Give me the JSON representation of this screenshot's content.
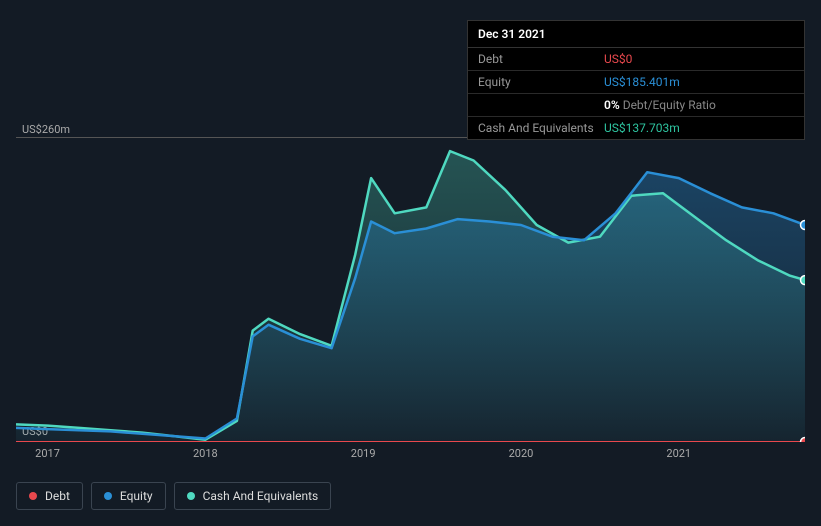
{
  "tooltip": {
    "date": "Dec 31 2021",
    "rows": [
      {
        "label": "Debt",
        "value": "US$0",
        "cls": "debt"
      },
      {
        "label": "Equity",
        "value": "US$185.401m",
        "cls": "equity"
      },
      {
        "label": "",
        "ratio_pct": "0%",
        "ratio_txt": " Debt/Equity Ratio",
        "cls": "ratio"
      },
      {
        "label": "Cash And Equivalents",
        "value": "US$137.703m",
        "cls": "cash"
      }
    ]
  },
  "chart": {
    "type": "area",
    "background_color": "#131b25",
    "grid_color": "#2a3340",
    "axis_line_color": "#555",
    "y": {
      "max_label": "US$260m",
      "min_label": "US$0",
      "ylim": [
        0,
        260
      ]
    },
    "x": {
      "ticks": [
        {
          "label": "2017",
          "pos": 0.04
        },
        {
          "label": "2018",
          "pos": 0.24
        },
        {
          "label": "2019",
          "pos": 0.44
        },
        {
          "label": "2020",
          "pos": 0.64
        },
        {
          "label": "2021",
          "pos": 0.84
        }
      ]
    },
    "series": {
      "debt": {
        "label": "Debt",
        "color": "#e8484d",
        "fill_opacity": 0.35,
        "points": [
          [
            0.0,
            0
          ],
          [
            0.04,
            0
          ],
          [
            0.08,
            0
          ],
          [
            0.12,
            0
          ],
          [
            0.16,
            0
          ],
          [
            0.2,
            0
          ],
          [
            0.24,
            0
          ],
          [
            0.28,
            0
          ],
          [
            0.32,
            0
          ],
          [
            0.36,
            0
          ],
          [
            0.4,
            0
          ],
          [
            0.44,
            0
          ],
          [
            0.48,
            0
          ],
          [
            0.52,
            0
          ],
          [
            0.56,
            0
          ],
          [
            0.6,
            0
          ],
          [
            0.64,
            0
          ],
          [
            0.68,
            0
          ],
          [
            0.72,
            0
          ],
          [
            0.76,
            0
          ],
          [
            0.8,
            0
          ],
          [
            0.84,
            0
          ],
          [
            0.88,
            0
          ],
          [
            0.92,
            0
          ],
          [
            0.96,
            0
          ],
          [
            1.0,
            0
          ]
        ]
      },
      "equity": {
        "label": "Equity",
        "color": "#2a8fd6",
        "fill_opacity": 0.35,
        "points": [
          [
            0.0,
            12
          ],
          [
            0.04,
            11
          ],
          [
            0.08,
            10
          ],
          [
            0.12,
            9
          ],
          [
            0.16,
            7
          ],
          [
            0.2,
            5
          ],
          [
            0.24,
            3
          ],
          [
            0.28,
            20
          ],
          [
            0.3,
            90
          ],
          [
            0.32,
            100
          ],
          [
            0.36,
            88
          ],
          [
            0.4,
            80
          ],
          [
            0.43,
            140
          ],
          [
            0.45,
            188
          ],
          [
            0.48,
            178
          ],
          [
            0.52,
            182
          ],
          [
            0.56,
            190
          ],
          [
            0.6,
            188
          ],
          [
            0.64,
            185
          ],
          [
            0.68,
            175
          ],
          [
            0.72,
            172
          ],
          [
            0.76,
            195
          ],
          [
            0.8,
            230
          ],
          [
            0.84,
            225
          ],
          [
            0.88,
            212
          ],
          [
            0.92,
            200
          ],
          [
            0.96,
            195
          ],
          [
            1.0,
            185
          ]
        ]
      },
      "cash": {
        "label": "Cash And Equivalents",
        "color": "#4fd9c0",
        "fill_opacity": 0.3,
        "points": [
          [
            0.0,
            15
          ],
          [
            0.04,
            14
          ],
          [
            0.08,
            12
          ],
          [
            0.12,
            10
          ],
          [
            0.16,
            8
          ],
          [
            0.2,
            5
          ],
          [
            0.24,
            2
          ],
          [
            0.28,
            18
          ],
          [
            0.3,
            95
          ],
          [
            0.32,
            105
          ],
          [
            0.36,
            92
          ],
          [
            0.4,
            82
          ],
          [
            0.43,
            160
          ],
          [
            0.45,
            225
          ],
          [
            0.48,
            195
          ],
          [
            0.52,
            200
          ],
          [
            0.55,
            248
          ],
          [
            0.58,
            240
          ],
          [
            0.62,
            215
          ],
          [
            0.66,
            185
          ],
          [
            0.7,
            170
          ],
          [
            0.74,
            175
          ],
          [
            0.78,
            210
          ],
          [
            0.82,
            212
          ],
          [
            0.86,
            192
          ],
          [
            0.9,
            172
          ],
          [
            0.94,
            155
          ],
          [
            0.98,
            142
          ],
          [
            1.0,
            138
          ]
        ]
      }
    },
    "markers": [
      {
        "x": 1.0,
        "y": 185,
        "color": "#2a8fd6"
      },
      {
        "x": 1.0,
        "y": 138,
        "color": "#4fd9c0"
      },
      {
        "x": 1.0,
        "y": 0,
        "color": "#e8484d"
      }
    ],
    "line_width": 2.5,
    "label_fontsize": 11
  },
  "legend": [
    {
      "label": "Debt",
      "color": "#e8484d"
    },
    {
      "label": "Equity",
      "color": "#2a8fd6"
    },
    {
      "label": "Cash And Equivalents",
      "color": "#4fd9c0"
    }
  ]
}
